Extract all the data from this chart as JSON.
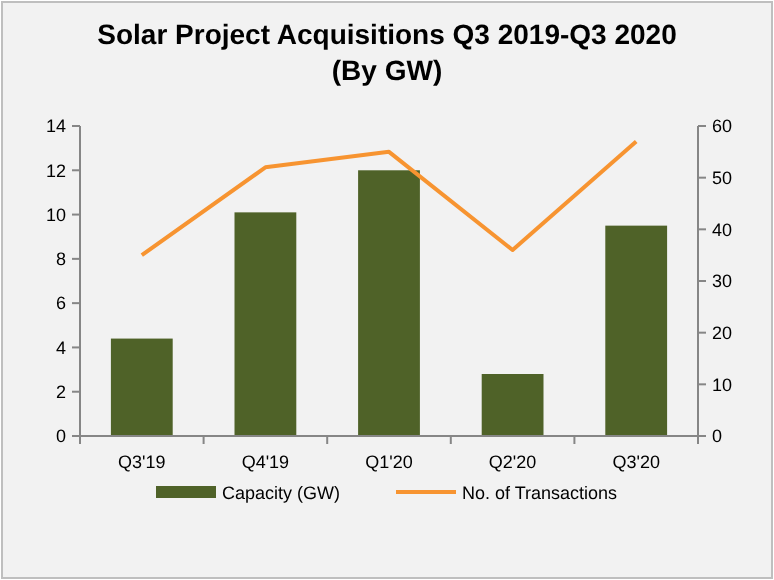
{
  "chart_data": {
    "type": "bar",
    "title": "Solar Project Acquisitions Q3 2019-Q3 2020",
    "subtitle": "(By GW)",
    "categories": [
      "Q3'19",
      "Q4'19",
      "Q1'20",
      "Q2'20",
      "Q3'20"
    ],
    "series": [
      {
        "name": "Capacity (GW)",
        "color": "#4f6228",
        "values": [
          4.4,
          10.1,
          12.0,
          2.8,
          9.5
        ]
      },
      {
        "name": "No. of Transactions",
        "type": "line",
        "axis": "y2",
        "color": "#f79431",
        "values": [
          35,
          52,
          55,
          36,
          57
        ]
      }
    ],
    "ylim": [
      0,
      14
    ],
    "yticks": [
      0,
      2,
      4,
      6,
      8,
      10,
      12,
      14
    ],
    "y2lim": [
      0,
      60
    ],
    "y2ticks": [
      0,
      10,
      20,
      30,
      40,
      50,
      60
    ],
    "legend": "bottom",
    "grid": false,
    "marker": "none"
  }
}
